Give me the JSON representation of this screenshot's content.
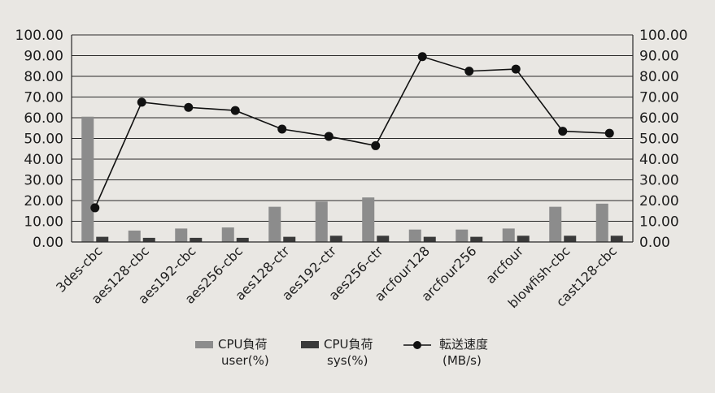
{
  "chart_data": {
    "type": "bar",
    "categories": [
      "3des-cbc",
      "aes128-cbc",
      "aes192-cbc",
      "aes256-cbc",
      "aes128-ctr",
      "aes192-ctr",
      "aes256-ctr",
      "arcfour128",
      "arcfour256",
      "arcfour",
      "blowfish-cbc",
      "cast128-cbc"
    ],
    "series": [
      {
        "name": "CPU負荷 user(%)",
        "legend_lines": [
          "CPU負荷",
          "user(%)"
        ],
        "kind": "bar",
        "axis": "left",
        "color": "#8c8c8c",
        "values": [
          60.5,
          5.5,
          6.5,
          7.0,
          17.0,
          19.5,
          21.5,
          6.0,
          6.0,
          6.5,
          17.0,
          18.5
        ]
      },
      {
        "name": "CPU負荷 sys(%)",
        "legend_lines": [
          "CPU負荷",
          "sys(%)"
        ],
        "kind": "bar",
        "axis": "left",
        "color": "#3a3a3a",
        "values": [
          2.5,
          2.0,
          2.0,
          2.0,
          2.5,
          3.0,
          3.0,
          2.5,
          2.5,
          3.0,
          3.0,
          3.0
        ]
      },
      {
        "name": "転送速度 (MB/s)",
        "legend_lines": [
          "転送速度",
          "(MB/s)"
        ],
        "kind": "line",
        "axis": "right",
        "color": "#111111",
        "values": [
          16.5,
          67.5,
          65.0,
          63.5,
          54.5,
          51.0,
          46.5,
          89.5,
          82.5,
          83.5,
          53.5,
          52.5
        ]
      }
    ],
    "ylim_left": [
      0,
      100
    ],
    "ylim_right": [
      0,
      100
    ],
    "left_ticks": [
      "0.00",
      "10.00",
      "20.00",
      "30.00",
      "40.00",
      "50.00",
      "60.00",
      "70.00",
      "80.00",
      "90.00",
      "100.00"
    ],
    "right_ticks": [
      "0.00",
      "10.00",
      "20.00",
      "30.00",
      "40.00",
      "50.00",
      "60.00",
      "70.00",
      "80.00",
      "90.00",
      "100.00"
    ],
    "grid": true,
    "legend_position": "bottom"
  }
}
